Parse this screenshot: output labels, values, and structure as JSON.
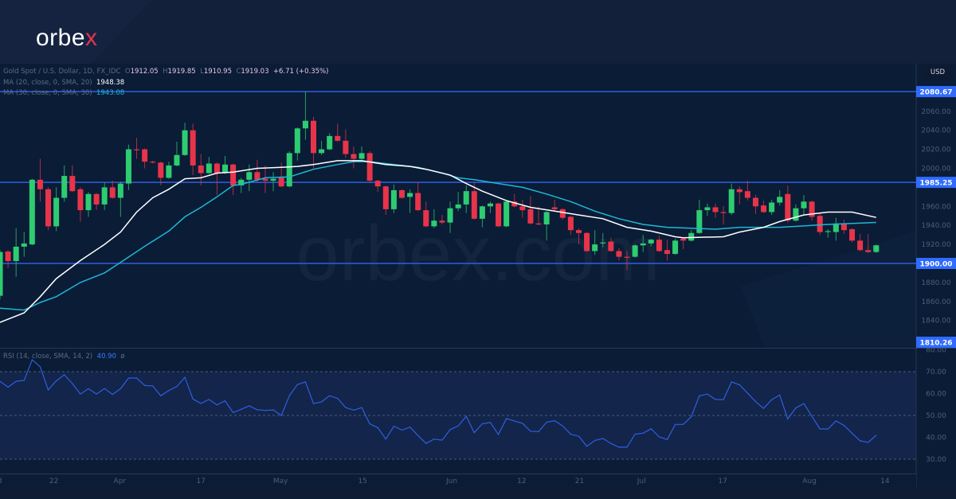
{
  "brand": {
    "logo_text_main": "orbe",
    "logo_text_accent": "x",
    "watermark": "orbex.com"
  },
  "legend": {
    "symbol": "Gold Spot / U.S. Dollar, 1D, FX_IDC",
    "open_label": "O",
    "open": "1912.05",
    "high_label": "H",
    "high": "1919.85",
    "low_label": "L",
    "low": "1910.95",
    "close_label": "C",
    "close": "1919.03",
    "change": "+6.71 (+0.35%)",
    "ma20_label": "MA (20, close, 0, SMA, 20)",
    "ma20_value": "1948.38",
    "ma30_label": "MA (30, close, 0, SMA, 30)",
    "ma30_value": "1943.08",
    "rsi_label": "RSI (14, close, SMA, 14, 2)",
    "rsi_value": "40.90",
    "rsi_extra": "ø"
  },
  "currency_button": "USD",
  "colors": {
    "up": "#2ecc71",
    "down": "#e8344a",
    "ma20": "#ffffff",
    "ma30": "#1fb7d4",
    "level": "#2f5ee0",
    "rsi": "#2f5ee0",
    "background": "#0a1c36"
  },
  "chart_data": [
    {
      "type": "candlestick",
      "ylim": [
        1810.26,
        2090
      ],
      "yticks": [
        "2060.00",
        "2040.00",
        "2020.00",
        "2000.00",
        "1960.00",
        "1940.00",
        "1920.00",
        "1880.00",
        "1860.00",
        "1840.00"
      ],
      "xtick_labels": [
        "13",
        "22",
        "Apr",
        "17",
        "May",
        "15",
        "Jun",
        "12",
        "21",
        "Jul",
        "17",
        "Aug",
        "14"
      ],
      "xtick_bar_index": [
        -0.3,
        6.7,
        14.9,
        25,
        34.9,
        45.1,
        56.2,
        64.9,
        72.1,
        79.8,
        89.9,
        100.7,
        110.1
      ],
      "horizontal_levels": [
        "2080.67",
        "1985.25",
        "1900.00",
        "1810.26"
      ],
      "ohlc": [
        [
          1866,
          1914,
          1862,
          1912
        ],
        [
          1912.5,
          1914,
          1895,
          1902.5
        ],
        [
          1902.5,
          1937,
          1886,
          1917.6
        ],
        [
          1917.6,
          1933,
          1907,
          1921
        ],
        [
          1920,
          1989,
          1919,
          1988
        ],
        [
          1988,
          2010,
          1965,
          1978
        ],
        [
          1978,
          1980,
          1935,
          1939
        ],
        [
          1939,
          1980,
          1934,
          1969
        ],
        [
          1969,
          2003,
          1965,
          1992
        ],
        [
          1992,
          2003,
          1975,
          1976
        ],
        [
          1978,
          1980,
          1944,
          1956
        ],
        [
          1956,
          1975,
          1949,
          1973
        ],
        [
          1973,
          1974,
          1956,
          1962
        ],
        [
          1962,
          1985,
          1956,
          1980
        ],
        [
          1980,
          1987,
          1968,
          1969
        ],
        [
          1969,
          1986,
          1949,
          1984
        ],
        [
          1984,
          2025,
          1977,
          2020
        ],
        [
          2020,
          2032,
          2010,
          2019
        ],
        [
          2020,
          2021,
          2000,
          2007
        ],
        [
          2007,
          2008,
          2005,
          2006
        ],
        [
          2006,
          2007,
          1982,
          1990
        ],
        [
          1990,
          2007,
          1989,
          2003
        ],
        [
          2003,
          2028,
          2002,
          2014
        ],
        [
          2014,
          2048,
          2013,
          2040
        ],
        [
          2040,
          2047,
          1993,
          2003
        ],
        [
          2003,
          2015,
          1982,
          1995
        ],
        [
          1995,
          2012,
          1994,
          2005
        ],
        [
          2005,
          2006,
          1972,
          1995
        ],
        [
          1995,
          2013,
          1994,
          2004
        ],
        [
          2004,
          2005,
          1972,
          1982
        ],
        [
          1982,
          1990,
          1974,
          1988
        ],
        [
          1988,
          2004,
          1976,
          1996
        ],
        [
          1996,
          2009,
          1985,
          1988
        ],
        [
          1989,
          2003,
          1974,
          1987
        ],
        [
          1987,
          1996,
          1976,
          1989
        ],
        [
          1990,
          2006,
          1980,
          1981
        ],
        [
          1981,
          2018,
          1980,
          2016
        ],
        [
          2016,
          2043,
          2008,
          2042
        ],
        [
          2042,
          2080.67,
          2030,
          2050
        ],
        [
          2050,
          2054,
          2000,
          2016
        ],
        [
          2016,
          2029,
          2014,
          2020
        ],
        [
          2020,
          2037,
          2019,
          2034
        ],
        [
          2034,
          2047,
          2028,
          2029
        ],
        [
          2029,
          2041,
          2011,
          2015
        ],
        [
          2015,
          2023,
          2000,
          2010
        ],
        [
          2010,
          2023,
          2009,
          2016
        ],
        [
          2016,
          2018,
          1985,
          1987
        ],
        [
          1987,
          1988,
          1975,
          1981
        ],
        [
          1981,
          1982,
          1951,
          1957
        ],
        [
          1957,
          1983,
          1953,
          1977
        ],
        [
          1977,
          1978,
          1968,
          1969
        ],
        [
          1970,
          1978,
          1953,
          1974
        ],
        [
          1974,
          1985,
          1955,
          1956
        ],
        [
          1956,
          1965,
          1938,
          1939
        ],
        [
          1939,
          1957,
          1937,
          1945
        ],
        [
          1945,
          1951,
          1941,
          1943
        ],
        [
          1943,
          1965,
          1932,
          1958
        ],
        [
          1958,
          1975,
          1955,
          1962
        ],
        [
          1962,
          1982,
          1953,
          1976
        ],
        [
          1976,
          1985,
          1946,
          1947
        ],
        [
          1947,
          1961,
          1938,
          1960
        ],
        [
          1960,
          1965,
          1953,
          1963
        ],
        [
          1963,
          1964,
          1938,
          1939
        ],
        [
          1939,
          1966,
          1938,
          1965
        ],
        [
          1965,
          1973,
          1959,
          1960
        ],
        [
          1960,
          1967,
          1948,
          1956
        ],
        [
          1957,
          1971,
          1941,
          1942
        ],
        [
          1942,
          1960,
          1940,
          1941
        ],
        [
          1941,
          1955,
          1924,
          1954
        ],
        [
          1959,
          1967,
          1955,
          1957
        ],
        [
          1957,
          1958,
          1946,
          1948
        ],
        [
          1949,
          1950,
          1930,
          1935
        ],
        [
          1935,
          1937,
          1920,
          1932
        ],
        [
          1932,
          1933,
          1912,
          1913
        ],
        [
          1913,
          1935,
          1909,
          1920
        ],
        [
          1921,
          1932,
          1917,
          1922
        ],
        [
          1923,
          1927,
          1912,
          1913
        ],
        [
          1913,
          1916,
          1903,
          1907
        ],
        [
          1907,
          1913,
          1893,
          1906
        ],
        [
          1907,
          1920,
          1906,
          1919
        ],
        [
          1919,
          1930,
          1912,
          1921
        ],
        [
          1921,
          1926,
          1918,
          1925
        ],
        [
          1925,
          1929,
          1912,
          1913
        ],
        [
          1914,
          1925,
          1903,
          1910
        ],
        [
          1910,
          1926,
          1909,
          1924
        ],
        [
          1926,
          1927,
          1915,
          1924
        ],
        [
          1924,
          1935,
          1923,
          1932
        ],
        [
          1932,
          1967,
          1931,
          1956
        ],
        [
          1956,
          1963,
          1950,
          1959
        ],
        [
          1959,
          1963,
          1948,
          1954
        ],
        [
          1954,
          1960,
          1941,
          1953
        ],
        [
          1953,
          1984,
          1951,
          1978
        ],
        [
          1978,
          1981,
          1962,
          1975
        ],
        [
          1976,
          1987,
          1966,
          1969
        ],
        [
          1969,
          1972,
          1952,
          1960
        ],
        [
          1961,
          1966,
          1953,
          1954
        ],
        [
          1954,
          1967,
          1951,
          1964
        ],
        [
          1964,
          1977,
          1961,
          1970
        ],
        [
          1973,
          1982,
          1943,
          1945
        ],
        [
          1945,
          1962,
          1944,
          1958
        ],
        [
          1958,
          1972,
          1951,
          1965
        ],
        [
          1965,
          1966,
          1945,
          1949
        ],
        [
          1950,
          1953,
          1930,
          1933
        ],
        [
          1933,
          1936,
          1927,
          1934
        ],
        [
          1933,
          1948,
          1924,
          1942
        ],
        [
          1942,
          1946,
          1931,
          1935
        ],
        [
          1936,
          1937,
          1922,
          1924
        ],
        [
          1924,
          1931,
          1913,
          1914
        ],
        [
          1914,
          1931,
          1911,
          1912
        ],
        [
          1912.05,
          1919.85,
          1910.95,
          1919.03
        ]
      ],
      "ma20": [
        [
          0,
          1838
        ],
        [
          3,
          1848
        ],
        [
          5,
          1865
        ],
        [
          7,
          1884
        ],
        [
          10,
          1903
        ],
        [
          13,
          1920
        ],
        [
          15,
          1933
        ],
        [
          17,
          1954
        ],
        [
          19,
          1969
        ],
        [
          21,
          1978
        ],
        [
          23,
          1989
        ],
        [
          25,
          1990
        ],
        [
          27,
          1995
        ],
        [
          29,
          1996
        ],
        [
          32,
          2000
        ],
        [
          35,
          2001
        ],
        [
          37,
          2002
        ],
        [
          39,
          2004
        ],
        [
          42,
          2008
        ],
        [
          45,
          2008
        ],
        [
          48,
          2004
        ],
        [
          51,
          2002
        ],
        [
          53,
          1999
        ],
        [
          56,
          1993
        ],
        [
          58,
          1984
        ],
        [
          60,
          1976
        ],
        [
          63,
          1966
        ],
        [
          66,
          1959
        ],
        [
          69,
          1955
        ],
        [
          72,
          1951
        ],
        [
          75,
          1947
        ],
        [
          78,
          1938
        ],
        [
          81,
          1934
        ],
        [
          84,
          1928
        ],
        [
          85,
          1927
        ],
        [
          90,
          1928
        ],
        [
          92,
          1933
        ],
        [
          95,
          1938
        ],
        [
          97,
          1944
        ],
        [
          100,
          1951
        ],
        [
          103,
          1954
        ],
        [
          106,
          1954
        ],
        [
          109,
          1948.38
        ]
      ],
      "ma30": [
        [
          0,
          1853
        ],
        [
          3,
          1851
        ],
        [
          5,
          1859
        ],
        [
          7,
          1865
        ],
        [
          10,
          1880
        ],
        [
          13,
          1890
        ],
        [
          15,
          1901
        ],
        [
          18,
          1918
        ],
        [
          21,
          1934
        ],
        [
          23,
          1949
        ],
        [
          25,
          1959
        ],
        [
          27,
          1970
        ],
        [
          29,
          1982
        ],
        [
          30,
          1983
        ],
        [
          33,
          1990
        ],
        [
          36,
          1991
        ],
        [
          39,
          1999
        ],
        [
          42,
          2004
        ],
        [
          44,
          2007
        ],
        [
          46,
          2007
        ],
        [
          49,
          2004
        ],
        [
          52,
          2001
        ],
        [
          55,
          1995
        ],
        [
          57,
          1990
        ],
        [
          59,
          1988
        ],
        [
          62,
          1984
        ],
        [
          65,
          1980
        ],
        [
          68,
          1973
        ],
        [
          71,
          1965
        ],
        [
          74,
          1955
        ],
        [
          77,
          1947
        ],
        [
          80,
          1941
        ],
        [
          83,
          1938
        ],
        [
          86,
          1937
        ],
        [
          89,
          1936
        ],
        [
          92,
          1938
        ],
        [
          97,
          1938
        ],
        [
          103,
          1941
        ],
        [
          109,
          1943.08
        ]
      ]
    },
    {
      "type": "line",
      "name": "RSI",
      "ylim": [
        25,
        80
      ],
      "yticks": [
        "80.00",
        "70.00",
        "60.00",
        "50.00",
        "40.00",
        "30.00"
      ],
      "bands": [
        30,
        50,
        70
      ],
      "values": [
        65.6,
        62.9,
        65.6,
        66,
        75.4,
        72.2,
        61.7,
        65.8,
        68.6,
        64.6,
        59.8,
        62.2,
        59.8,
        62.3,
        59.6,
        62.2,
        67.1,
        67.1,
        63.7,
        63.5,
        59,
        61.4,
        63.2,
        67.4,
        57.5,
        55.5,
        57.3,
        54.8,
        56.7,
        51.3,
        52.8,
        54.4,
        52.6,
        52.3,
        52.5,
        50,
        59,
        64.1,
        65.3,
        55.4,
        56.2,
        59,
        57.8,
        53.6,
        52.4,
        53.6,
        46.2,
        44.4,
        39.2,
        45.1,
        43.3,
        44.7,
        40.8,
        37.2,
        39.2,
        38.7,
        43.5,
        45.2,
        49.6,
        42.1,
        46.2,
        46.8,
        41.3,
        48.6,
        47.4,
        46.4,
        42.8,
        42.6,
        46.9,
        47.6,
        45.2,
        41.4,
        40.5,
        35.9,
        38.6,
        39.5,
        37.2,
        35.5,
        35.5,
        41.4,
        41.9,
        43.9,
        40.2,
        39,
        45.9,
        45.9,
        49.4,
        58.9,
        59.8,
        57.3,
        57.2,
        65.3,
        64,
        60.2,
        56.3,
        53.2,
        57.2,
        59.3,
        48.4,
        53.4,
        55.4,
        49.6,
        43.8,
        43.8,
        47.5,
        45.4,
        41.9,
        38.4,
        37.7,
        40.9
      ]
    }
  ]
}
